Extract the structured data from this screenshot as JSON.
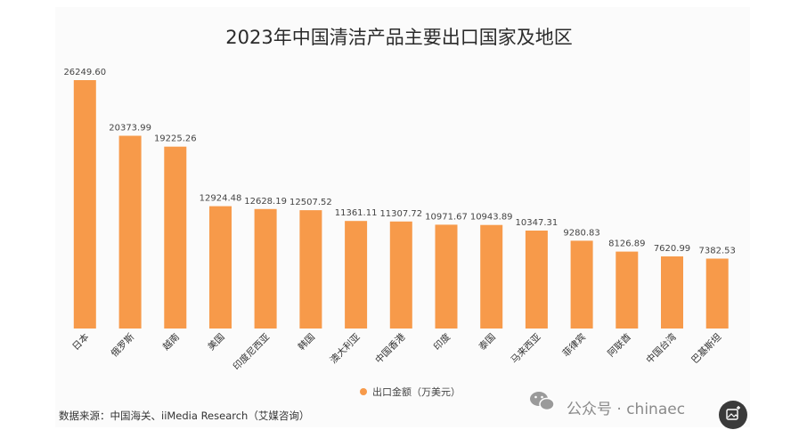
{
  "chart_data": {
    "type": "bar",
    "title": "2023年中国清洁产品主要出口国家及地区",
    "categories": [
      "日本",
      "俄罗斯",
      "越南",
      "美国",
      "印度尼西亚",
      "韩国",
      "澳大利亚",
      "中国香港",
      "印度",
      "泰国",
      "马来西亚",
      "菲律宾",
      "阿联酋",
      "中国台湾",
      "巴基斯坦"
    ],
    "series": [
      {
        "name": "出口金额（万美元）",
        "values": [
          26249.6,
          20373.99,
          19225.26,
          12924.48,
          12628.19,
          12507.52,
          11361.11,
          11307.72,
          10971.67,
          10943.89,
          10347.31,
          9280.83,
          8126.89,
          7620.99,
          7382.53
        ],
        "labels": [
          "26249.60",
          "20373.99",
          "19225.26",
          "12924.48",
          "12628.19",
          "12507.52",
          "11361.11",
          "11307.72",
          "10971.67",
          "10943.89",
          "10347.31",
          "9280.83",
          "8126.89",
          "7620.99",
          "7382.53"
        ]
      }
    ],
    "xlabel": "",
    "ylabel": "",
    "ylim": [
      0,
      26249.6
    ],
    "grid": false,
    "legend_position": "bottom",
    "bar_color": "#F79A4A"
  },
  "source_text": "数据来源：中国海关、iiMedia Research（艾媒咨询）",
  "watermark": {
    "text": "公众号 · chinaec",
    "icon": "wechat-icon"
  },
  "corner_button": {
    "icon": "image-edit-icon"
  },
  "colors": {
    "bar": "#F79A4A",
    "background": "#ffffff",
    "watermark": "#8a8a8a"
  }
}
